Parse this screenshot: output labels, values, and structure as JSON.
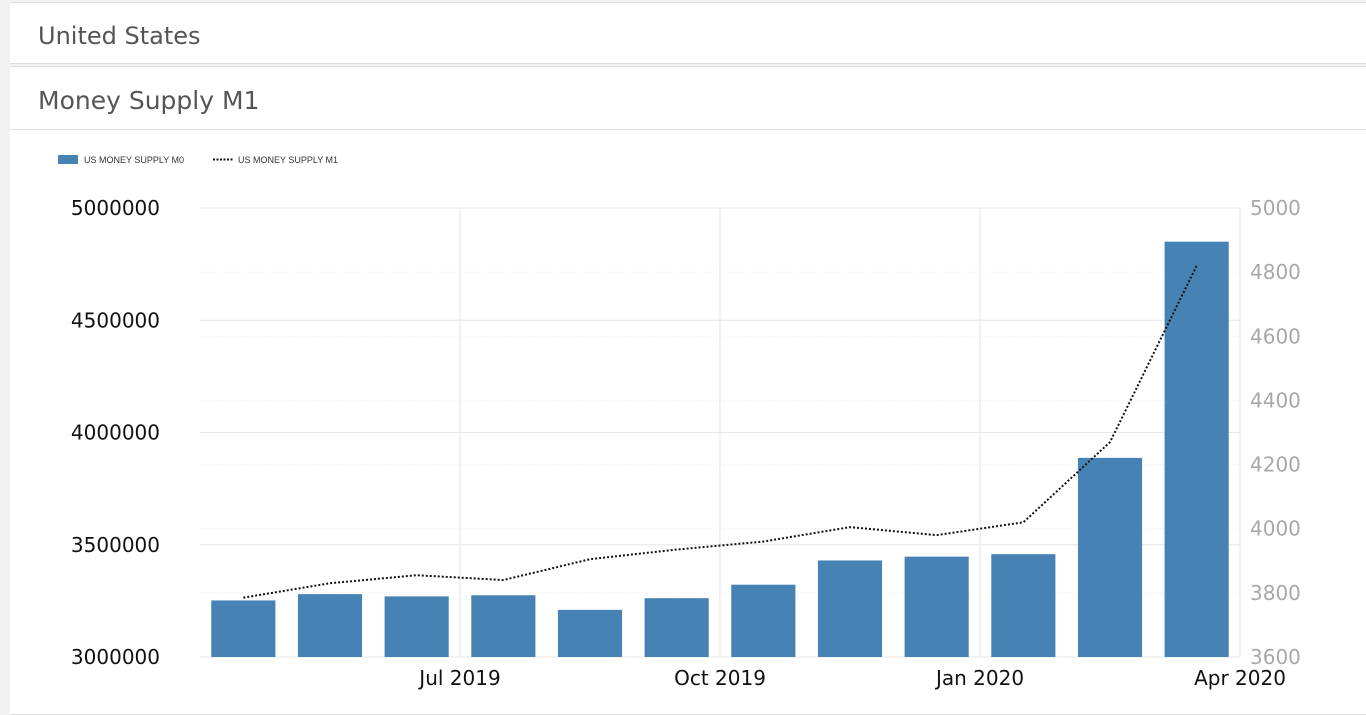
{
  "header": {
    "country": "United States"
  },
  "indicator": {
    "title": "Money Supply M1"
  },
  "chart_data": {
    "type": "bar",
    "legend_position": "top-left",
    "grid": true,
    "colors": {
      "bar": "#4682b4",
      "line": "#111111"
    },
    "series": [
      {
        "name": "US MONEY SUPPLY M0",
        "type": "bar",
        "axis": "left",
        "values": [
          3252000,
          3280000,
          3270000,
          3275000,
          3210000,
          3262000,
          3322000,
          3430000,
          3447000,
          3458000,
          3887000,
          4850000
        ]
      },
      {
        "name": "US MONEY SUPPLY M1",
        "type": "line",
        "style": "dotted",
        "axis": "right",
        "values": [
          3785,
          3830,
          3855,
          3840,
          3905,
          3935,
          3960,
          4005,
          3980,
          4020,
          4270,
          4820
        ]
      }
    ],
    "categories": [
      "2019-04",
      "2019-05",
      "2019-06",
      "2019-07",
      "2019-08",
      "2019-09",
      "2019-10",
      "2019-11",
      "2019-12",
      "2020-01",
      "2020-02",
      "2020-03"
    ],
    "x_tick_labels": [
      {
        "label": "Jul 2019",
        "after_index": 2
      },
      {
        "label": "Oct 2019",
        "after_index": 5
      },
      {
        "label": "Jan 2020",
        "after_index": 8
      },
      {
        "label": "Apr 2020",
        "after_index": 11
      }
    ],
    "y_left": {
      "range": [
        3000000,
        5000000
      ],
      "ticks": [
        "5000000",
        "4500000",
        "4000000",
        "3500000",
        "3000000"
      ]
    },
    "y_right": {
      "range": [
        3600,
        5000
      ],
      "ticks": [
        "5000",
        "4800",
        "4600",
        "4400",
        "4200",
        "4000",
        "3800",
        "3600"
      ]
    }
  }
}
